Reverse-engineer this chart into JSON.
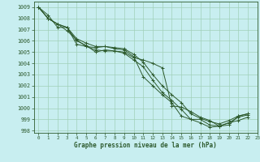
{
  "title": "Graphe pression niveau de la mer (hPa)",
  "background_color": "#c8eef0",
  "plot_bg_color": "#c8eef0",
  "grid_color": "#a0d0b8",
  "line_color": "#2d5a2d",
  "xlim": [
    -0.5,
    23
  ],
  "ylim": [
    997.8,
    1009.5
  ],
  "xticks": [
    0,
    1,
    2,
    3,
    4,
    5,
    6,
    7,
    8,
    9,
    10,
    11,
    12,
    13,
    14,
    15,
    16,
    17,
    18,
    19,
    20,
    21,
    22,
    23
  ],
  "yticks": [
    998,
    999,
    1000,
    1001,
    1002,
    1003,
    1004,
    1005,
    1006,
    1007,
    1008,
    1009
  ],
  "series": [
    [
      1009.0,
      1008.3,
      1007.2,
      1007.2,
      1006.0,
      1005.6,
      1005.0,
      1005.2,
      1005.1,
      1005.0,
      1004.5,
      1004.3,
      1004.0,
      1003.6,
      1000.2,
      1000.1,
      999.7,
      999.2,
      998.9,
      998.4,
      998.5,
      999.3,
      999.5,
      null
    ],
    [
      1009.0,
      1008.0,
      1007.5,
      1006.9,
      1006.1,
      1005.5,
      1005.2,
      1005.1,
      1005.1,
      1004.9,
      1004.3,
      1003.7,
      1002.5,
      1001.4,
      1000.7,
      999.9,
      999.0,
      998.7,
      998.3,
      998.4,
      998.7,
      998.9,
      999.2,
      null
    ],
    [
      1009.0,
      1008.0,
      1007.5,
      1007.2,
      1005.7,
      1005.5,
      1005.4,
      1005.5,
      1005.3,
      1005.2,
      1004.6,
      1002.8,
      1002.0,
      1001.2,
      1000.5,
      999.3,
      999.0,
      999.0,
      998.5,
      998.4,
      998.7,
      999.2,
      999.4,
      null
    ],
    [
      1009.0,
      1008.0,
      1007.5,
      1007.2,
      1006.2,
      1005.8,
      1005.5,
      1005.5,
      1005.4,
      1005.3,
      1004.8,
      1004.1,
      1003.0,
      1002.0,
      1001.2,
      1000.5,
      999.5,
      999.1,
      998.8,
      998.6,
      998.9,
      999.3,
      999.5,
      null
    ]
  ]
}
